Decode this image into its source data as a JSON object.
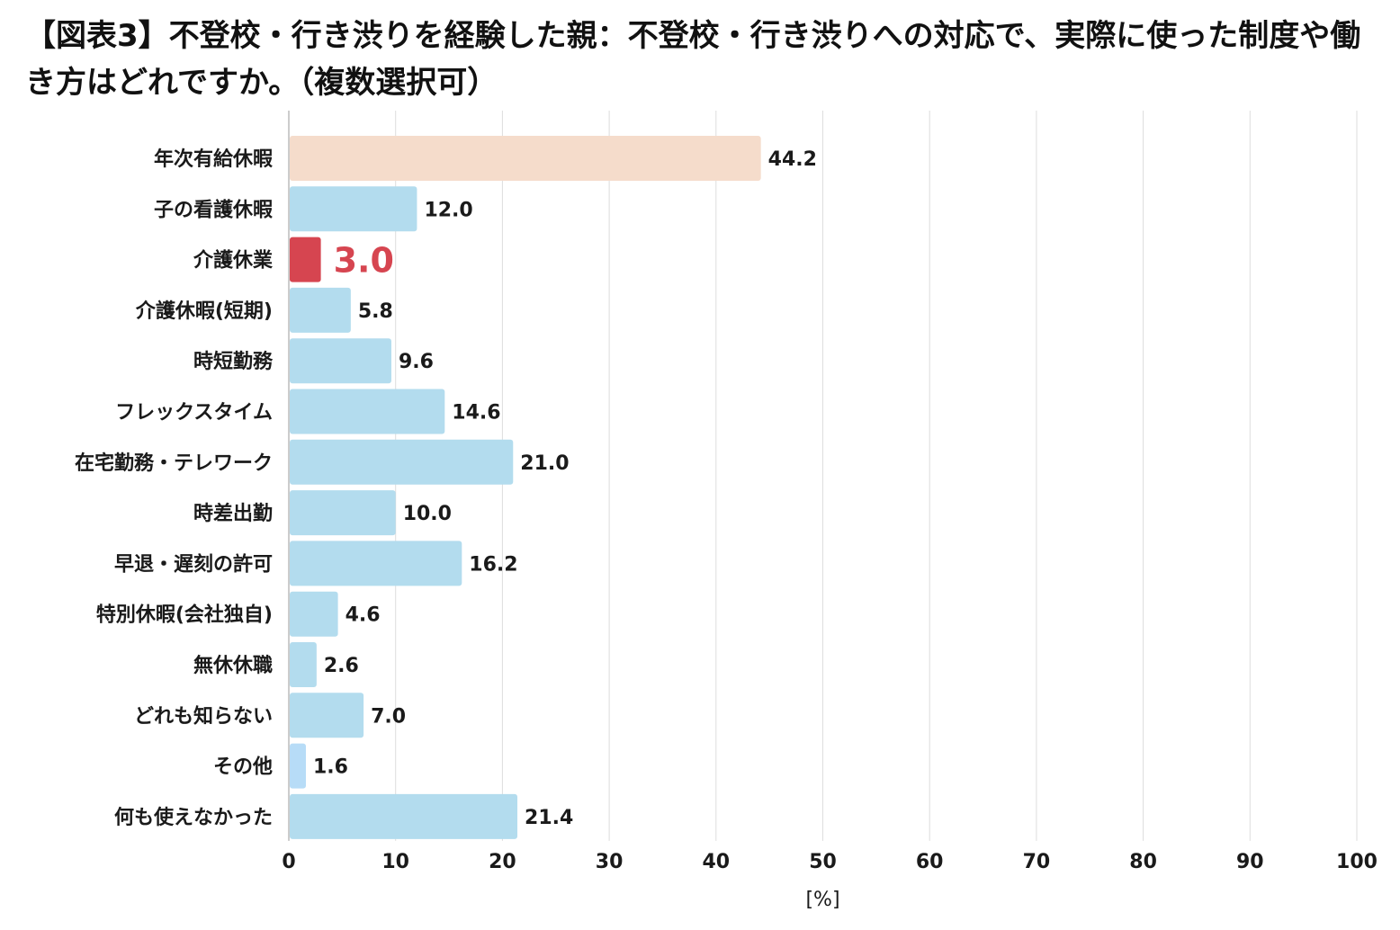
{
  "chart_data": {
    "type": "bar",
    "orientation": "horizontal",
    "title": "【図表3】不登校・行き渋りを経験した親：不登校・行き渋りへの対応で、実際に使った制度や働き方はどれですか。（複数選択可）",
    "categories": [
      "年次有給休暇",
      "子の看護休暇",
      "介護休業",
      "介護休暇(短期)",
      "時短勤務",
      "フレックスタイム",
      "在宅勤務・テレワーク",
      "時差出勤",
      "早退・遅刻の許可",
      "特別休暇(会社独自)",
      "無休休職",
      "どれも知らない",
      "その他",
      "何も使えなかった"
    ],
    "values": [
      44.2,
      12.0,
      3.0,
      5.8,
      9.6,
      14.6,
      21.0,
      10.0,
      16.2,
      4.6,
      2.6,
      7.0,
      1.6,
      21.4
    ],
    "value_labels": [
      "44.2",
      "12.0",
      "3.0",
      "5.8",
      "9.6",
      "14.6",
      "21.0",
      "10.0",
      "16.2",
      "4.6",
      "2.6",
      "7.0",
      "1.6",
      "21.4"
    ],
    "bar_colors": [
      "#f5dccb",
      "#b3dcee",
      "#d64550",
      "#b3dcee",
      "#b3dcee",
      "#b3dcee",
      "#b3dcee",
      "#b3dcee",
      "#b3dcee",
      "#b3dcee",
      "#b3dcee",
      "#b3dcee",
      "#b7dcf7",
      "#b3dcee"
    ],
    "highlight_index": 2,
    "highlight_label_color": "#d64550",
    "xlim": [
      0,
      100
    ],
    "xticks": [
      "0",
      "10",
      "20",
      "30",
      "40",
      "50",
      "60",
      "70",
      "80",
      "90",
      "100"
    ],
    "xlabel": "[%]",
    "ylabel": "",
    "grid": true,
    "grid_color": "#dddddd"
  }
}
